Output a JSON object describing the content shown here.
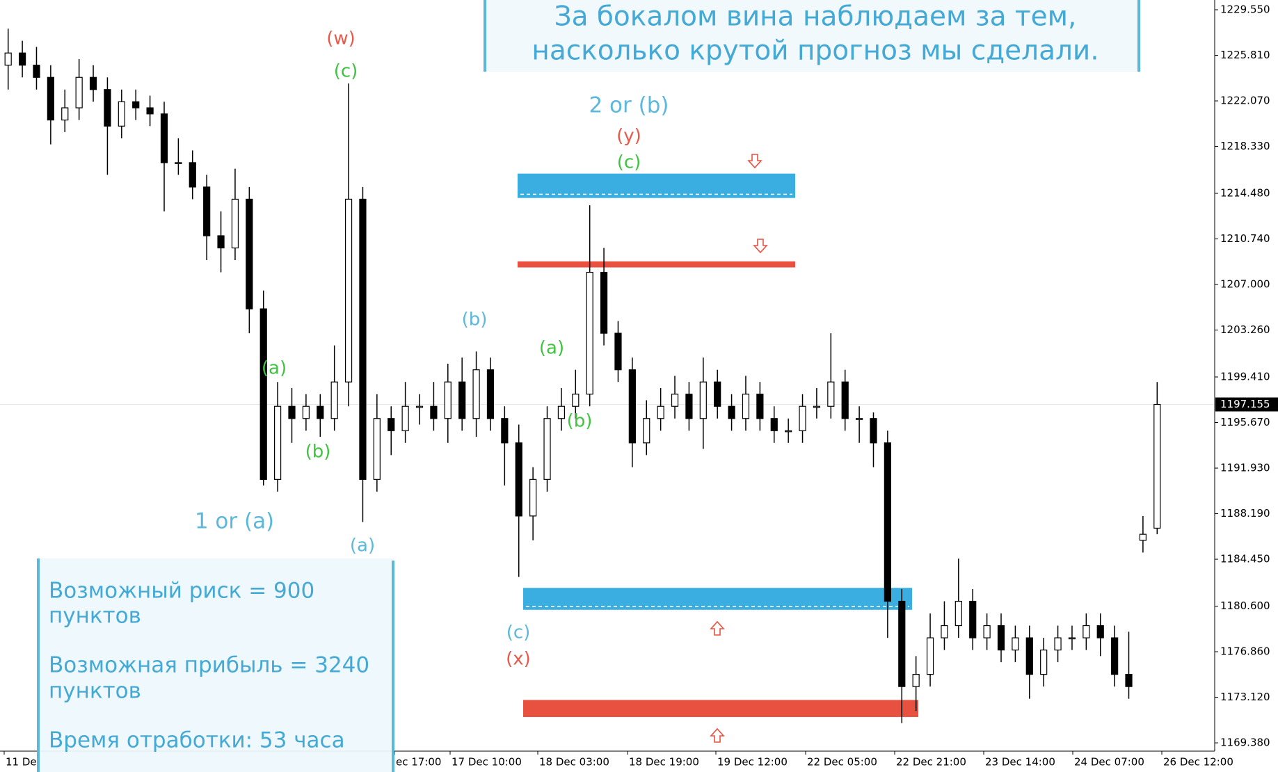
{
  "chart_data": {
    "type": "candlestick",
    "open": [
      1225,
      1226,
      1225,
      1224,
      1220.5,
      1221.5,
      1224,
      1223,
      1220,
      1222,
      1221.5,
      1221,
      1217,
      1217,
      1215,
      1211,
      1210,
      1214,
      1205,
      1191,
      1197,
      1196,
      1197,
      1196,
      1199,
      1214,
      1191,
      1196,
      1195,
      1197,
      1197,
      1196,
      1199,
      1196,
      1200,
      1196,
      1194,
      1188,
      1191,
      1196,
      1197,
      1198,
      1208,
      1203,
      1200,
      1194,
      1196,
      1197,
      1198,
      1196,
      1199,
      1197,
      1196,
      1198,
      1196,
      1195,
      1195,
      1197,
      1197,
      1199,
      1196,
      1196,
      1194,
      1181,
      1174,
      1175,
      1178,
      1179,
      1181,
      1178,
      1179,
      1177,
      1178,
      1175,
      1177,
      1178,
      1178,
      1179,
      1178,
      1175,
      1186,
      1187
    ],
    "high": [
      1228,
      1227,
      1226.5,
      1225,
      1223,
      1225.5,
      1225,
      1224,
      1223,
      1223,
      1222.5,
      1222,
      1219,
      1218,
      1216,
      1213,
      1216.5,
      1215,
      1206.5,
      1199,
      1198.5,
      1198,
      1198,
      1202,
      1223.5,
      1215,
      1198,
      1197,
      1199,
      1198,
      1199,
      1200.5,
      1201,
      1201.5,
      1201,
      1197,
      1195.5,
      1192,
      1197,
      1198.5,
      1200,
      1213.5,
      1210,
      1204,
      1201,
      1197.5,
      1198.5,
      1199.5,
      1199,
      1201,
      1200,
      1198,
      1199.5,
      1199,
      1197,
      1196,
      1198,
      1198.5,
      1203,
      1200,
      1197,
      1196.5,
      1195,
      1182,
      1176.5,
      1180,
      1181,
      1184.5,
      1182,
      1180,
      1180,
      1179,
      1179,
      1178,
      1179,
      1179,
      1180,
      1180,
      1179,
      1178.5,
      1188,
      1199
    ],
    "low": [
      1223,
      1224,
      1223,
      1218.5,
      1219.5,
      1220.5,
      1222,
      1216,
      1219,
      1220.5,
      1220,
      1213,
      1216,
      1214,
      1209,
      1208,
      1209,
      1203,
      1190.5,
      1190,
      1194,
      1195,
      1194.5,
      1195,
      1197,
      1187.5,
      1190,
      1193,
      1194,
      1195.5,
      1195,
      1194,
      1195,
      1194.5,
      1195,
      1190.5,
      1183,
      1186,
      1190,
      1195,
      1196,
      1197,
      1202,
      1199,
      1192,
      1193,
      1195,
      1196,
      1195,
      1193.5,
      1196,
      1195,
      1195,
      1195,
      1194,
      1194,
      1194,
      1196,
      1196,
      1195,
      1194,
      1192,
      1178,
      1171,
      1172,
      1174,
      1177,
      1178,
      1177,
      1177,
      1176,
      1176,
      1173,
      1174,
      1176,
      1177,
      1177,
      1176.5,
      1174,
      1173,
      1185,
      1186.5
    ],
    "close": [
      1226,
      1225,
      1224,
      1220.5,
      1221.5,
      1224,
      1223,
      1220,
      1222,
      1221.5,
      1221,
      1217,
      1217,
      1215,
      1211,
      1210,
      1214,
      1205,
      1191,
      1197,
      1196,
      1197,
      1196,
      1199,
      1214,
      1191,
      1196,
      1195,
      1197,
      1197,
      1196,
      1199,
      1196,
      1200,
      1196,
      1194,
      1188,
      1191,
      1196,
      1197,
      1198,
      1208,
      1203,
      1200,
      1194,
      1196,
      1197,
      1198,
      1196,
      1199,
      1197,
      1196,
      1198,
      1196,
      1195,
      1195,
      1197,
      1197,
      1199,
      1196,
      1196,
      1194,
      1181,
      1174,
      1175,
      1178,
      1179,
      1181,
      1178,
      1179,
      1177,
      1178,
      1175,
      1177,
      1178,
      1178,
      1179,
      1178,
      1175,
      1174,
      1186.5,
      1197.155
    ],
    "up_color": "#ffffff",
    "down_color": "#000000",
    "ylim": [
      1168.7,
      1230.35
    ],
    "yticks": [
      {
        "value": 1229.55,
        "label": "1229.550"
      },
      {
        "value": 1225.81,
        "label": "1225.810"
      },
      {
        "value": 1222.07,
        "label": "1222.070"
      },
      {
        "value": 1218.33,
        "label": "1218.330"
      },
      {
        "value": 1214.48,
        "label": "1214.480"
      },
      {
        "value": 1210.74,
        "label": "1210.740"
      },
      {
        "value": 1207,
        "label": "1207.000"
      },
      {
        "value": 1203.26,
        "label": "1203.260"
      },
      {
        "value": 1199.41,
        "label": "1199.410"
      },
      {
        "value": 1195.67,
        "label": "1195.670"
      },
      {
        "value": 1191.93,
        "label": "1191.930"
      },
      {
        "value": 1188.19,
        "label": "1188.190"
      },
      {
        "value": 1184.45,
        "label": "1184.450"
      },
      {
        "value": 1180.6,
        "label": "1180.600"
      },
      {
        "value": 1176.86,
        "label": "1176.860"
      },
      {
        "value": 1173.12,
        "label": "1173.120"
      },
      {
        "value": 1169.38,
        "label": "1169.380"
      }
    ],
    "xtick_labels": [
      "11 De",
      "ec 17:00",
      "17 Dec 10:00",
      "18 Dec 03:00",
      "18 Dec 19:00",
      "19 Dec 12:00",
      "22 Dec 05:00",
      "22 Dec 21:00",
      "23 Dec 14:00",
      "24 Dec 07:00",
      "26 Dec 12:00"
    ],
    "zones": [
      {
        "top": 1216.1,
        "bottom": 1214.1,
        "color": "#3aaee0"
      },
      {
        "top": 1208.9,
        "bottom": 1208.4,
        "color": "#e8513f"
      },
      {
        "top": 1182.1,
        "bottom": 1180.3,
        "color": "#3aaee0"
      },
      {
        "top": 1172.9,
        "bottom": 1171.5,
        "color": "#e8513f"
      }
    ],
    "annotations": [
      {
        "text": "(w)",
        "color": "#e8594a"
      },
      {
        "text": "(c)",
        "color": "#3ec43e"
      },
      {
        "text": "2 or (b)",
        "color": "#5bb8dc"
      },
      {
        "text": "(y)",
        "color": "#e8594a"
      },
      {
        "text": "(c)",
        "color": "#3ec43e"
      },
      {
        "text": "(a)",
        "color": "#3ec43e"
      },
      {
        "text": "(b)",
        "color": "#3ec43e"
      },
      {
        "text": "1 or (a)",
        "color": "#5bb8dc"
      },
      {
        "text": "(a)",
        "color": "#5bb8dc"
      },
      {
        "text": "(b)",
        "color": "#5bb8dc"
      },
      {
        "text": "(a)",
        "color": "#3ec43e"
      },
      {
        "text": "(b)",
        "color": "#3ec43e"
      },
      {
        "text": "(c)",
        "color": "#5bb8dc"
      },
      {
        "text": "(x)",
        "color": "#e8594a"
      }
    ]
  },
  "banner": [
    "За бокалом вина наблюдаем за тем,",
    "насколько крутой прогноз мы сделали."
  ],
  "info_panel": [
    "Возможный риск = 900",
    "пунктов",
    "Возможная прибыль = 3240",
    "пунктов",
    "Время отработки: 53 часа"
  ]
}
